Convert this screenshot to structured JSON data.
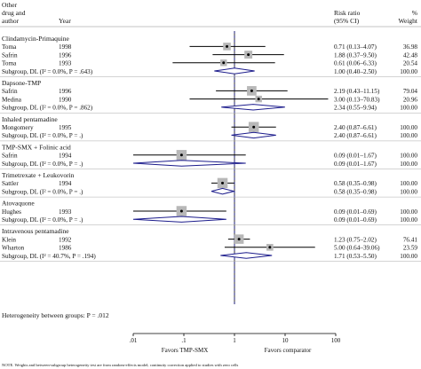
{
  "header": {
    "col1_line1": "Other",
    "col1_line2": "drug and",
    "col1_line3": "author",
    "col2": "Year",
    "col3_line1": "Risk ratio",
    "col3_line2": "(95% CI)",
    "col4_line1": "%",
    "col4_line2": "Weight"
  },
  "axis": {
    "ticks": [
      ".01",
      ".1",
      "1",
      "10",
      "100"
    ],
    "left_label": "Favors TMP-SMX",
    "right_label": "Favors comparator"
  },
  "heterogeneity_between": "Heterogeneity between groups: P = .012",
  "note": "NOTE. Weights and between-subgroup heterogeneity test are from random-effects model; continuity correction applied to studies with zero cells",
  "chart_data": {
    "type": "forest",
    "scale": "log",
    "xlim": [
      0.01,
      100
    ],
    "null_line": 1,
    "overall_line": 1.0,
    "groups": [
      {
        "name": "Clindamycin-Primaquine",
        "studies": [
          {
            "author": "Toma",
            "year": "1998",
            "rr": 0.71,
            "lo": 0.13,
            "hi": 4.07,
            "ci_text": "0.71 (0.13–4.07)",
            "weight": "36.98"
          },
          {
            "author": "Safrin",
            "year": "1996",
            "rr": 1.88,
            "lo": 0.37,
            "hi": 9.5,
            "ci_text": "1.88 (0.37–9.50)",
            "weight": "42.48"
          },
          {
            "author": "Toma",
            "year": "1993",
            "rr": 0.61,
            "lo": 0.06,
            "hi": 6.33,
            "ci_text": "0.61 (0.06–6.33)",
            "weight": "20.54"
          }
        ],
        "subgroup": {
          "label": "Subgroup, DL (I² = 0.0%, P = .643)",
          "rr": 1.0,
          "lo": 0.4,
          "hi": 2.5,
          "ci_text": "1.00 (0.40–2.50)",
          "weight": "100.00"
        }
      },
      {
        "name": "Dapsone-TMP",
        "studies": [
          {
            "author": "Safrin",
            "year": "1996",
            "rr": 2.19,
            "lo": 0.43,
            "hi": 11.15,
            "ci_text": "2.19 (0.43–11.15)",
            "weight": "79.04"
          },
          {
            "author": "Medina",
            "year": "1990",
            "rr": 3.0,
            "lo": 0.13,
            "hi": 70.83,
            "ci_text": "3.00 (0.13–70.83)",
            "weight": "20.96"
          }
        ],
        "subgroup": {
          "label": "Subgroup, DL (I² = 0.0%, P = .862)",
          "rr": 2.34,
          "lo": 0.55,
          "hi": 9.94,
          "ci_text": "2.34 (0.55–9.94)",
          "weight": "100.00"
        }
      },
      {
        "name": "Inhaled pentamadine",
        "studies": [
          {
            "author": "Mongomery",
            "year": "1995",
            "rr": 2.4,
            "lo": 0.87,
            "hi": 6.61,
            "ci_text": "2.40 (0.87–6.61)",
            "weight": "100.00"
          }
        ],
        "subgroup": {
          "label": "Subgroup, DL (I² = 0.0%, P = .)",
          "rr": 2.4,
          "lo": 0.87,
          "hi": 6.61,
          "ci_text": "2.40 (0.87–6.61)",
          "weight": "100.00"
        }
      },
      {
        "name": "TMP-SMX + Folinic acid",
        "studies": [
          {
            "author": "Safrin",
            "year": "1994",
            "rr": 0.09,
            "lo": 0.01,
            "hi": 1.67,
            "ci_text": "0.09 (0.01–1.67)",
            "weight": "100.00"
          }
        ],
        "subgroup": {
          "label": "Subgroup, DL (I² = 0.0%, P = .)",
          "rr": 0.09,
          "lo": 0.01,
          "hi": 1.67,
          "ci_text": "0.09 (0.01–1.67)",
          "weight": "100.00"
        }
      },
      {
        "name": "Trimetrexate + Leukovorin",
        "studies": [
          {
            "author": "Sattler",
            "year": "1994",
            "rr": 0.58,
            "lo": 0.35,
            "hi": 0.98,
            "ci_text": "0.58 (0.35–0.98)",
            "weight": "100.00"
          }
        ],
        "subgroup": {
          "label": "Subgroup, DL (I² = 0.0%, P = .)",
          "rr": 0.58,
          "lo": 0.35,
          "hi": 0.98,
          "ci_text": "0.58 (0.35–0.98)",
          "weight": "100.00"
        }
      },
      {
        "name": "Atovaquone",
        "studies": [
          {
            "author": "Hughes",
            "year": "1993",
            "rr": 0.09,
            "lo": 0.01,
            "hi": 0.69,
            "ci_text": "0.09 (0.01–0.69)",
            "weight": "100.00"
          }
        ],
        "subgroup": {
          "label": "Subgroup, DL (I² = 0.0%, P = .)",
          "rr": 0.09,
          "lo": 0.01,
          "hi": 0.69,
          "ci_text": "0.09 (0.01–0.69)",
          "weight": "100.00"
        }
      },
      {
        "name": "Intravenous pentamadine",
        "studies": [
          {
            "author": "Klein",
            "year": "1992",
            "rr": 1.23,
            "lo": 0.75,
            "hi": 2.02,
            "ci_text": "1.23 (0.75–2.02)",
            "weight": "76.41"
          },
          {
            "author": "Wharton",
            "year": "1986",
            "rr": 5.0,
            "lo": 0.64,
            "hi": 39.06,
            "ci_text": "5.00 (0.64–39.06)",
            "weight": "23.59"
          }
        ],
        "subgroup": {
          "label": "Subgroup, DL (I² = 40.7%, P = .194)",
          "rr": 1.71,
          "lo": 0.53,
          "hi": 5.5,
          "ci_text": "1.71 (0.53–5.50)",
          "weight": "100.00"
        }
      }
    ],
    "colors": {
      "diamond": "#1c1c8c",
      "square": "#b8b8b8",
      "ci": "#000000",
      "dashed": "#1c1c8c"
    }
  }
}
